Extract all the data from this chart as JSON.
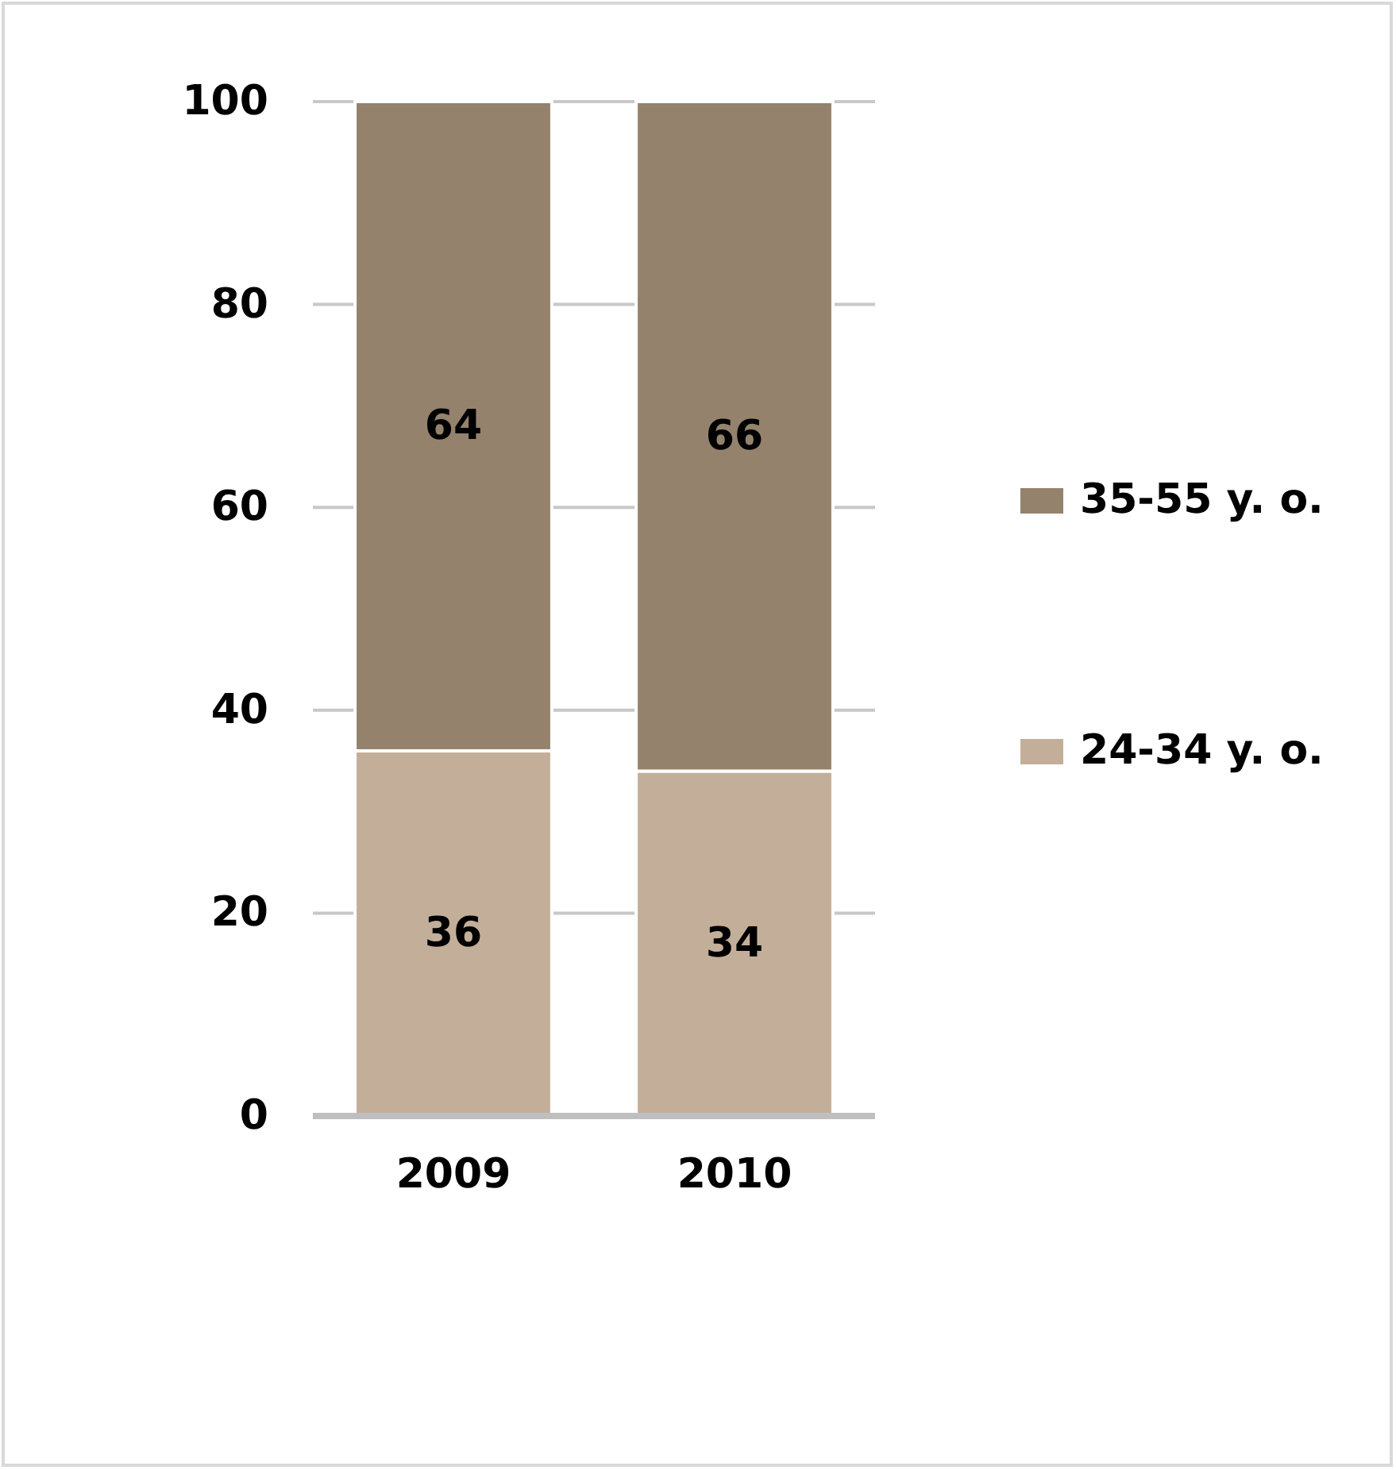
{
  "chart_data": {
    "type": "bar",
    "stacked": true,
    "categories": [
      "2009",
      "2010"
    ],
    "series": [
      {
        "name": "24-34 y. o.",
        "color": "#c3af99",
        "values": [
          36,
          34
        ]
      },
      {
        "name": "35-55 y. o.",
        "color": "#94826d",
        "values": [
          64,
          66
        ]
      }
    ],
    "ylim": [
      0,
      100
    ],
    "yticks": [
      0,
      20,
      40,
      60,
      80,
      100
    ],
    "grid": "y",
    "legend": "right",
    "data_labels": true
  }
}
